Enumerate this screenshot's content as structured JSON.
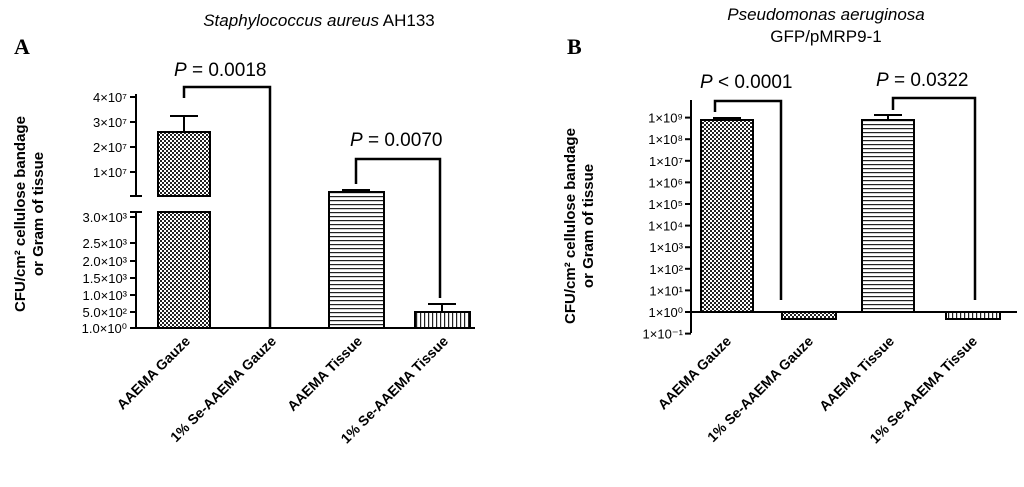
{
  "chart_data": [
    {
      "panel": "A",
      "type": "bar",
      "title_italic": "Staphylococcus aureus",
      "title_plain": " AH133",
      "ylabel_line1": "CFU/cm² cellulose bandage",
      "ylabel_line2": "or Gram of tissue",
      "categories": [
        "AAEMA Gauze",
        "1% Se-AAEMA Gauze",
        "AAEMA Tissue",
        "1% Se-AAEMA Tissue"
      ],
      "values": [
        26000000,
        0,
        3050,
        440
      ],
      "errors": [
        7000000,
        0,
        0,
        230
      ],
      "broken_axis": true,
      "upper_ticks": [
        "1×10⁷",
        "2×10⁷",
        "3×10⁷",
        "4×10⁷"
      ],
      "lower_ticks": [
        "1.0×10⁰",
        "5.0×10²",
        "1.0×10³",
        "1.5×10³",
        "2.0×10³",
        "2.5×10³",
        "3.0×10³"
      ],
      "comparisons": [
        {
          "italic": "P",
          "rest": " = 0.0018"
        },
        {
          "italic": "P",
          "rest": " = 0.0070"
        }
      ]
    },
    {
      "panel": "B",
      "type": "bar",
      "title_italic": "Pseudomonas aeruginosa",
      "title_plain": "GFP/pMRP9-1",
      "ylabel_line1": "CFU/cm² cellulose bandage",
      "ylabel_line2": "or Gram of tissue",
      "y_scale": "log",
      "categories": [
        "AAEMA Gauze",
        "1% Se-AAEMA Gauze",
        "AAEMA Tissue",
        "1% Se-AAEMA Tissue"
      ],
      "values": [
        450000000,
        0.4,
        450000000,
        0.4
      ],
      "errors_upper": [
        520000000,
        0.4,
        620000000,
        0.4
      ],
      "ticks": [
        "1×10⁻¹",
        "1×10⁰",
        "1×10¹",
        "1×10²",
        "1×10³",
        "1×10⁴",
        "1×10⁵",
        "1×10⁶",
        "1×10⁷",
        "1×10⁸",
        "1×10⁹"
      ],
      "comparisons": [
        {
          "italic": "P",
          "rest": " < 0.0001"
        },
        {
          "italic": "P",
          "rest": " = 0.0322"
        }
      ]
    }
  ]
}
